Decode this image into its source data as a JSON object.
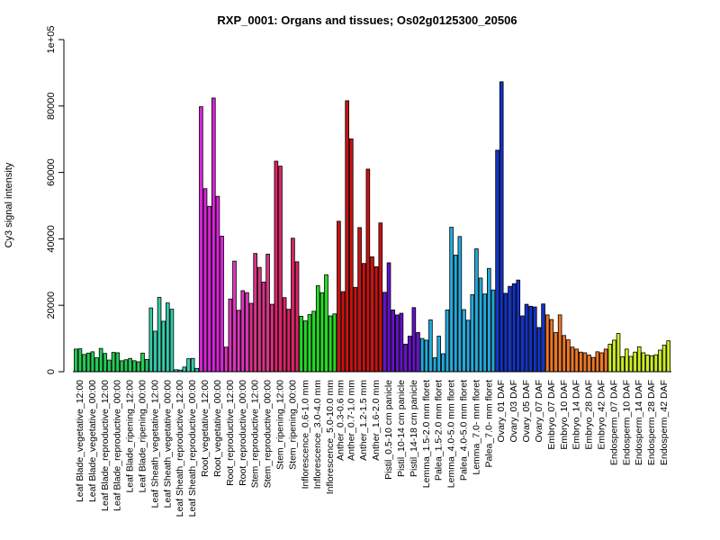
{
  "chart_data": {
    "type": "bar",
    "title": "RXP_0001: Organs and tissues; Os02g0125300_20506",
    "xlabel": "",
    "ylabel": "Cy3 signal intensity",
    "ylim": [
      0,
      100000
    ],
    "yticks": [
      0,
      20000,
      40000,
      60000,
      80000,
      100000
    ],
    "ytick_labels": [
      "0",
      "20000",
      "40000",
      "60000",
      "80000",
      "1e+05"
    ],
    "grid": false,
    "legend": "none",
    "groups": [
      {
        "label": "Leaf Blade_vegetative_12:00",
        "color": "#22cc55",
        "values": [
          6800,
          6900,
          5200
        ]
      },
      {
        "label": "Leaf Blade_vegetative_00:00",
        "color": "#22cc55",
        "values": [
          5600,
          6000,
          4200
        ]
      },
      {
        "label": "Leaf Blade_reproductive_12:00",
        "color": "#22cc55",
        "values": [
          7000,
          5500,
          3500
        ]
      },
      {
        "label": "Leaf Blade_reproductive_00:00",
        "color": "#22cc55",
        "values": [
          5800,
          5700,
          3300
        ]
      },
      {
        "label": "Leaf Blade_ripening_12:00",
        "color": "#22cc55",
        "values": [
          3600,
          4000,
          3300
        ]
      },
      {
        "label": "Leaf Blade_ripening_00:00",
        "color": "#22cc55",
        "values": [
          3000,
          5600,
          3700
        ]
      },
      {
        "label": "Leaf Sheath_vegetative_12:00",
        "color": "#33ccaa",
        "values": [
          19200,
          12200,
          22400
        ]
      },
      {
        "label": "Leaf Sheath_vegetative_00:00",
        "color": "#33ccaa",
        "values": [
          15200,
          20700,
          18800
        ]
      },
      {
        "label": "Leaf Sheath_reproductive_12:00",
        "color": "#33ccaa",
        "values": [
          600,
          500,
          1400
        ]
      },
      {
        "label": "Leaf Sheath_reproductive_00:00",
        "color": "#33ccaa",
        "values": [
          3900,
          4000,
          1000
        ]
      },
      {
        "label": "Root_vegetative_12:00",
        "color": "#dd22dd",
        "values": [
          79800,
          55100,
          49800
        ]
      },
      {
        "label": "Root_vegetative_00:00",
        "color": "#dd22dd",
        "values": [
          82400,
          52800,
          40800
        ]
      },
      {
        "label": "Root_reproductive_12:00",
        "color": "#dd33bb",
        "values": [
          7400,
          21900,
          33300
        ]
      },
      {
        "label": "Root_reproductive_00:00",
        "color": "#dd33bb",
        "values": [
          18500,
          24400,
          23800
        ]
      },
      {
        "label": "Stem_reproductive_12:00",
        "color": "#dd3388",
        "values": [
          20600,
          35600,
          31400
        ]
      },
      {
        "label": "Stem_reproductive_00:00",
        "color": "#dd3388",
        "values": [
          27000,
          35400,
          20300
        ]
      },
      {
        "label": "Stem_ripening_12:00",
        "color": "#dd2266",
        "values": [
          63400,
          61900,
          22300
        ]
      },
      {
        "label": "Stem_ripening_00:00",
        "color": "#dd2266",
        "values": [
          18800,
          40200,
          33100
        ]
      },
      {
        "label": "Inflorescence_0.6-1.0 mm",
        "color": "#22dd22",
        "values": [
          16700,
          15300,
          17200
        ]
      },
      {
        "label": "Inflorescence_3.0-4.0 mm",
        "color": "#22dd22",
        "values": [
          18200,
          25900,
          23800
        ]
      },
      {
        "label": "Inflorescence_5.0-10.0 mm",
        "color": "#22dd22",
        "values": [
          29200,
          16800,
          17400
        ]
      },
      {
        "label": "Anther_0.3-0.6 mm",
        "color": "#cc1111",
        "values": [
          45300,
          24100
        ]
      },
      {
        "label": "Anther_0.7-1.0 mm",
        "color": "#cc1111",
        "values": [
          81600,
          70100,
          25400
        ]
      },
      {
        "label": "Anther_1.2-1.5 mm",
        "color": "#cc1111",
        "values": [
          43400,
          32600,
          61000
        ]
      },
      {
        "label": "Anther_1.6-2.0 mm",
        "color": "#cc1111",
        "values": [
          34600,
          31600,
          44800
        ]
      },
      {
        "label": "Pistil_0.5-10 cm panicle",
        "color": "#6611cc",
        "values": [
          23900,
          32800,
          18600
        ]
      },
      {
        "label": "Pistil_10-14 cm panicle",
        "color": "#6611cc",
        "values": [
          17100,
          17600,
          8300
        ]
      },
      {
        "label": "Pistil_14-18 cm panicle",
        "color": "#6611cc",
        "values": [
          10700,
          19300,
          11800
        ]
      },
      {
        "label": "Lemma_1.5-2.0 mm floret",
        "color": "#22aadd",
        "values": [
          10000,
          9500,
          15600
        ]
      },
      {
        "label": "Palea_1.5-2.0 mm floret",
        "color": "#22aadd",
        "values": [
          4200,
          10700,
          5400
        ]
      },
      {
        "label": "Lemma_4.0-5.0 mm floret",
        "color": "#22aadd",
        "values": [
          18600,
          43500,
          35100
        ]
      },
      {
        "label": "Palea_4.0-5.0 mm floret",
        "color": "#22aadd",
        "values": [
          40700,
          18700,
          15500
        ]
      },
      {
        "label": "Lemma_7.0- mm floret",
        "color": "#22aadd",
        "values": [
          23200,
          37000,
          28200
        ]
      },
      {
        "label": "Palea_7.0- mm floret",
        "color": "#22aadd",
        "values": [
          23400,
          31100,
          24600
        ]
      },
      {
        "label": "Ovary_01 DAF",
        "color": "#1133cc",
        "values": [
          66700,
          87300,
          23600
        ]
      },
      {
        "label": "Ovary_03 DAF",
        "color": "#1133cc",
        "values": [
          25700,
          26500,
          27600
        ]
      },
      {
        "label": "Ovary_05 DAF",
        "color": "#1133cc",
        "values": [
          16800,
          20300,
          19700
        ]
      },
      {
        "label": "Ovary_07 DAF",
        "color": "#1133cc",
        "values": [
          19500,
          13300,
          20400
        ]
      },
      {
        "label": "Embryo_07 DAF",
        "color": "#ee7722",
        "values": [
          17100,
          15700,
          11800
        ]
      },
      {
        "label": "Embryo_10 DAF",
        "color": "#ee7722",
        "values": [
          17100,
          10900,
          9600
        ]
      },
      {
        "label": "Embryo_14 DAF",
        "color": "#ee7722",
        "values": [
          7400,
          6800,
          5900
        ]
      },
      {
        "label": "Embryo_28 DAF",
        "color": "#ee7722",
        "values": [
          5700,
          5000,
          4300
        ]
      },
      {
        "label": "Embryo_42 DAF",
        "color": "#ee7722",
        "values": [
          6000,
          5700,
          6800
        ]
      },
      {
        "label": "Endosperm_07 DAF",
        "color": "#ccee22",
        "values": [
          8300,
          9500,
          11500
        ]
      },
      {
        "label": "Endosperm_10 DAF",
        "color": "#ccee22",
        "values": [
          4500,
          6800,
          4600
        ]
      },
      {
        "label": "Endosperm_14 DAF",
        "color": "#ccee22",
        "values": [
          5900,
          7500,
          5700
        ]
      },
      {
        "label": "Endosperm_28 DAF",
        "color": "#ccee22",
        "values": [
          5000,
          4800,
          5100
        ]
      },
      {
        "label": "Endosperm_42 DAF",
        "color": "#ccee22",
        "values": [
          6500,
          8000,
          9300
        ]
      }
    ]
  }
}
